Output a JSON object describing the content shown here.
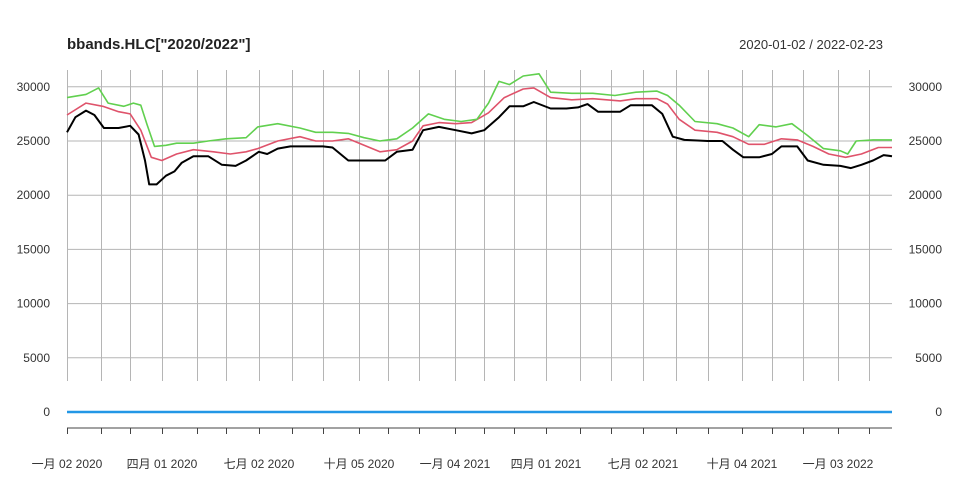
{
  "chart_data": {
    "type": "line",
    "title": "bbands.HLC[\"2020/2022\"]",
    "date_range": "2020-01-02 / 2022-02-23",
    "x_start": "2020-01-02",
    "x_end": "2022-02-23",
    "y_ticks": [
      "0",
      "5000",
      "10000",
      "15000",
      "20000",
      "25000",
      "30000"
    ],
    "x_tick_labels": [
      {
        "date": "2020-01-02",
        "label": "一月 02 2020"
      },
      {
        "date": "2020-04-01",
        "label": "四月 01 2020"
      },
      {
        "date": "2020-07-02",
        "label": "七月 02 2020"
      },
      {
        "date": "2020-10-05",
        "label": "十月 05 2020"
      },
      {
        "date": "2021-01-04",
        "label": "一月 04 2021"
      },
      {
        "date": "2021-04-01",
        "label": "四月 01 2021"
      },
      {
        "date": "2021-07-02",
        "label": "七月 02 2021"
      },
      {
        "date": "2021-10-04",
        "label": "十月 04 2021"
      },
      {
        "date": "2022-01-03",
        "label": "一月 03 2022"
      }
    ],
    "month_grid": [
      "2020-02-03",
      "2020-03-02",
      "2020-05-04",
      "2020-06-01",
      "2020-08-03",
      "2020-09-01",
      "2020-11-02",
      "2020-12-01",
      "2021-02-01",
      "2021-03-01",
      "2021-05-03",
      "2021-06-01",
      "2021-08-02",
      "2021-09-01",
      "2021-11-01",
      "2021-12-01",
      "2022-02-01"
    ],
    "ylim": [
      -2000,
      31500
    ],
    "grid": true,
    "series": [
      {
        "color": "#000000",
        "points": [
          [
            "2020-01-02",
            25800
          ],
          [
            "2020-01-10",
            27200
          ],
          [
            "2020-01-20",
            27800
          ],
          [
            "2020-01-28",
            27400
          ],
          [
            "2020-02-06",
            26200
          ],
          [
            "2020-02-20",
            26200
          ],
          [
            "2020-03-02",
            26400
          ],
          [
            "2020-03-10",
            25600
          ],
          [
            "2020-03-16",
            23200
          ],
          [
            "2020-03-20",
            21000
          ],
          [
            "2020-03-27",
            21000
          ],
          [
            "2020-04-05",
            21800
          ],
          [
            "2020-04-13",
            22200
          ],
          [
            "2020-04-20",
            23000
          ],
          [
            "2020-05-01",
            23600
          ],
          [
            "2020-05-15",
            23600
          ],
          [
            "2020-05-28",
            22800
          ],
          [
            "2020-06-10",
            22700
          ],
          [
            "2020-06-20",
            23200
          ],
          [
            "2020-07-02",
            24000
          ],
          [
            "2020-07-10",
            23800
          ],
          [
            "2020-07-20",
            24300
          ],
          [
            "2020-08-01",
            24500
          ],
          [
            "2020-09-01",
            24500
          ],
          [
            "2020-09-10",
            24400
          ],
          [
            "2020-09-25",
            23200
          ],
          [
            "2020-10-15",
            23200
          ],
          [
            "2020-10-30",
            23200
          ],
          [
            "2020-11-10",
            24000
          ],
          [
            "2020-11-25",
            24200
          ],
          [
            "2020-12-05",
            26000
          ],
          [
            "2020-12-20",
            26300
          ],
          [
            "2021-01-05",
            26000
          ],
          [
            "2021-01-20",
            25700
          ],
          [
            "2021-02-01",
            26000
          ],
          [
            "2021-02-15",
            27200
          ],
          [
            "2021-02-25",
            28200
          ],
          [
            "2021-03-10",
            28200
          ],
          [
            "2021-03-20",
            28600
          ],
          [
            "2021-04-05",
            28000
          ],
          [
            "2021-04-20",
            28000
          ],
          [
            "2021-05-01",
            28100
          ],
          [
            "2021-05-10",
            28400
          ],
          [
            "2021-05-20",
            27700
          ],
          [
            "2021-06-10",
            27700
          ],
          [
            "2021-06-20",
            28300
          ],
          [
            "2021-07-10",
            28300
          ],
          [
            "2021-07-20",
            27500
          ],
          [
            "2021-07-30",
            25400
          ],
          [
            "2021-08-10",
            25100
          ],
          [
            "2021-09-01",
            25000
          ],
          [
            "2021-09-15",
            25000
          ],
          [
            "2021-09-25",
            24200
          ],
          [
            "2021-10-05",
            23500
          ],
          [
            "2021-10-20",
            23500
          ],
          [
            "2021-11-01",
            23800
          ],
          [
            "2021-11-10",
            24500
          ],
          [
            "2021-11-25",
            24500
          ],
          [
            "2021-12-05",
            23200
          ],
          [
            "2021-12-20",
            22800
          ],
          [
            "2022-01-05",
            22700
          ],
          [
            "2022-01-15",
            22500
          ],
          [
            "2022-01-25",
            22800
          ],
          [
            "2022-02-05",
            23200
          ],
          [
            "2022-02-15",
            23700
          ],
          [
            "2022-02-23",
            23600
          ]
        ]
      },
      {
        "color": "#df536b",
        "points": [
          [
            "2020-01-02",
            27400
          ],
          [
            "2020-01-20",
            28500
          ],
          [
            "2020-02-05",
            28200
          ],
          [
            "2020-02-20",
            27700
          ],
          [
            "2020-03-02",
            27500
          ],
          [
            "2020-03-12",
            26000
          ],
          [
            "2020-03-22",
            23500
          ],
          [
            "2020-04-01",
            23200
          ],
          [
            "2020-04-15",
            23800
          ],
          [
            "2020-05-01",
            24200
          ],
          [
            "2020-05-20",
            24000
          ],
          [
            "2020-06-05",
            23800
          ],
          [
            "2020-06-20",
            24000
          ],
          [
            "2020-07-01",
            24300
          ],
          [
            "2020-07-20",
            25000
          ],
          [
            "2020-08-10",
            25400
          ],
          [
            "2020-08-25",
            25000
          ],
          [
            "2020-09-10",
            25000
          ],
          [
            "2020-09-25",
            25200
          ],
          [
            "2020-10-10",
            24600
          ],
          [
            "2020-10-25",
            24000
          ],
          [
            "2020-11-10",
            24200
          ],
          [
            "2020-11-25",
            25000
          ],
          [
            "2020-12-05",
            26400
          ],
          [
            "2020-12-20",
            26700
          ],
          [
            "2021-01-05",
            26600
          ],
          [
            "2021-01-20",
            26700
          ],
          [
            "2021-02-05",
            27600
          ],
          [
            "2021-02-20",
            29000
          ],
          [
            "2021-03-10",
            29800
          ],
          [
            "2021-03-20",
            29900
          ],
          [
            "2021-04-05",
            29000
          ],
          [
            "2021-04-25",
            28800
          ],
          [
            "2021-05-15",
            28900
          ],
          [
            "2021-06-10",
            28700
          ],
          [
            "2021-06-25",
            28900
          ],
          [
            "2021-07-15",
            28900
          ],
          [
            "2021-07-25",
            28400
          ],
          [
            "2021-08-05",
            27000
          ],
          [
            "2021-08-20",
            26000
          ],
          [
            "2021-09-10",
            25800
          ],
          [
            "2021-09-25",
            25400
          ],
          [
            "2021-10-10",
            24700
          ],
          [
            "2021-10-25",
            24700
          ],
          [
            "2021-11-10",
            25200
          ],
          [
            "2021-11-25",
            25100
          ],
          [
            "2021-12-10",
            24500
          ],
          [
            "2021-12-25",
            23800
          ],
          [
            "2022-01-10",
            23500
          ],
          [
            "2022-01-25",
            23800
          ],
          [
            "2022-02-10",
            24400
          ],
          [
            "2022-02-23",
            24400
          ]
        ]
      },
      {
        "color": "#61d04f",
        "points": [
          [
            "2020-01-02",
            29000
          ],
          [
            "2020-01-20",
            29300
          ],
          [
            "2020-02-01",
            29900
          ],
          [
            "2020-02-10",
            28500
          ],
          [
            "2020-02-25",
            28200
          ],
          [
            "2020-03-05",
            28500
          ],
          [
            "2020-03-12",
            28300
          ],
          [
            "2020-03-18",
            26500
          ],
          [
            "2020-03-25",
            24500
          ],
          [
            "2020-04-05",
            24600
          ],
          [
            "2020-04-15",
            24800
          ],
          [
            "2020-05-01",
            24800
          ],
          [
            "2020-05-15",
            25000
          ],
          [
            "2020-06-01",
            25200
          ],
          [
            "2020-06-20",
            25300
          ],
          [
            "2020-07-01",
            26300
          ],
          [
            "2020-07-20",
            26600
          ],
          [
            "2020-08-10",
            26200
          ],
          [
            "2020-08-25",
            25800
          ],
          [
            "2020-09-10",
            25800
          ],
          [
            "2020-09-25",
            25700
          ],
          [
            "2020-10-10",
            25300
          ],
          [
            "2020-10-25",
            25000
          ],
          [
            "2020-11-10",
            25200
          ],
          [
            "2020-11-25",
            26200
          ],
          [
            "2020-12-10",
            27500
          ],
          [
            "2020-12-25",
            27000
          ],
          [
            "2021-01-10",
            26800
          ],
          [
            "2021-01-25",
            27000
          ],
          [
            "2021-02-05",
            28500
          ],
          [
            "2021-02-15",
            30500
          ],
          [
            "2021-02-25",
            30200
          ],
          [
            "2021-03-10",
            31000
          ],
          [
            "2021-03-25",
            31200
          ],
          [
            "2021-04-05",
            29500
          ],
          [
            "2021-04-25",
            29400
          ],
          [
            "2021-05-15",
            29400
          ],
          [
            "2021-06-05",
            29200
          ],
          [
            "2021-06-25",
            29500
          ],
          [
            "2021-07-15",
            29600
          ],
          [
            "2021-07-25",
            29200
          ],
          [
            "2021-08-05",
            28300
          ],
          [
            "2021-08-20",
            26800
          ],
          [
            "2021-09-10",
            26600
          ],
          [
            "2021-09-25",
            26200
          ],
          [
            "2021-10-10",
            25400
          ],
          [
            "2021-10-20",
            26500
          ],
          [
            "2021-11-05",
            26300
          ],
          [
            "2021-11-20",
            26600
          ],
          [
            "2021-12-05",
            25500
          ],
          [
            "2021-12-20",
            24300
          ],
          [
            "2022-01-05",
            24100
          ],
          [
            "2022-01-12",
            23800
          ],
          [
            "2022-01-20",
            25000
          ],
          [
            "2022-02-05",
            25100
          ],
          [
            "2022-02-23",
            25100
          ]
        ]
      },
      {
        "color": "#2297e6",
        "points": [
          [
            "2020-01-02",
            0
          ],
          [
            "2022-02-23",
            0
          ]
        ]
      }
    ]
  }
}
